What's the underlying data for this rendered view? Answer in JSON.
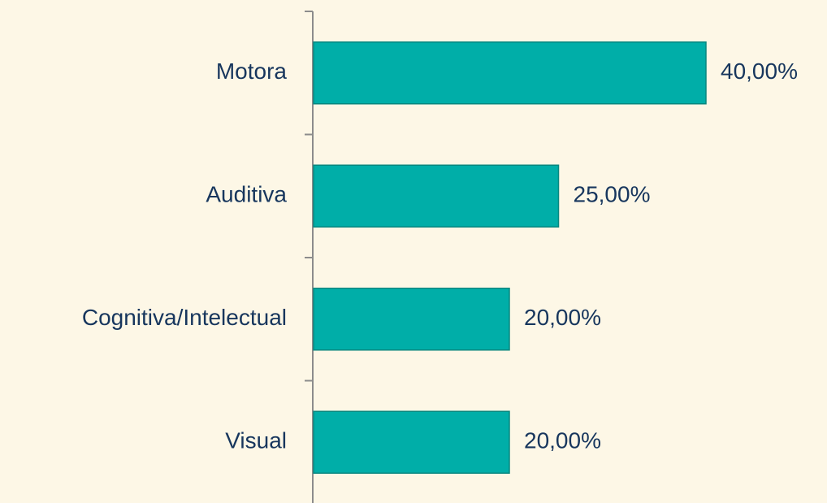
{
  "chart_data": {
    "type": "hbar",
    "categories": [
      "Motora",
      "Auditiva",
      "Cognitiva/Intelectual",
      "Visual"
    ],
    "values": [
      40,
      25,
      20,
      20
    ],
    "value_labels": [
      "40,00%",
      "25,00%",
      "20,00%",
      "20,00%"
    ],
    "color": "#00aea8",
    "xlim": [
      0,
      40
    ]
  }
}
